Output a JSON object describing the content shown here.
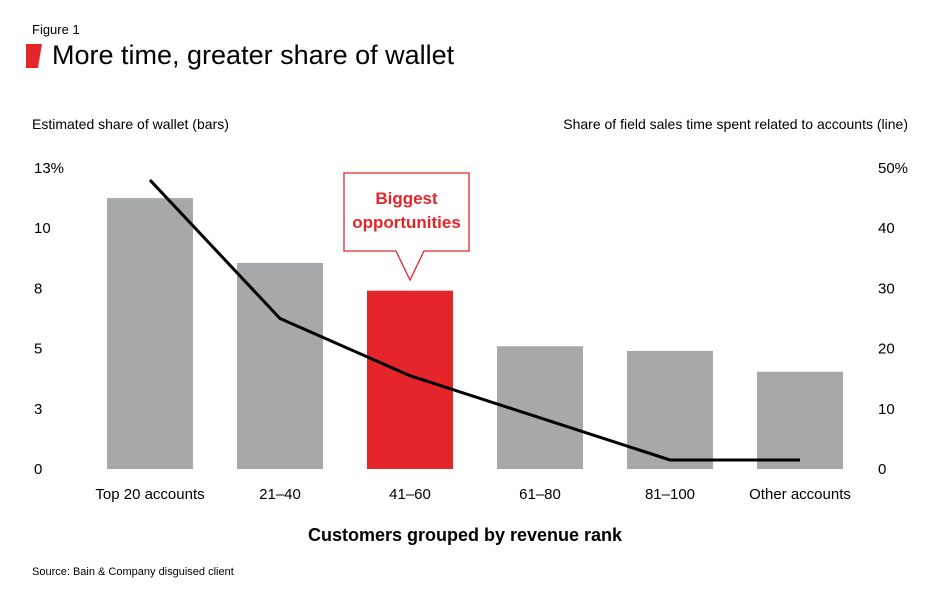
{
  "figure_label": "Figure 1",
  "title": "More time, greater share of wallet",
  "source": "Source: Bain & Company disguised client",
  "colors": {
    "accent": "#e4262b",
    "bar": "#a7a8aa",
    "line": "#000000"
  },
  "chart_data": {
    "type": "bar",
    "title": "More time, greater share of wallet",
    "xlabel": "Customers grouped by revenue rank",
    "ylabel": "Estimated share of wallet (bars)",
    "y2label": "Share of field sales time spent related to accounts (line)",
    "categories": [
      "Top 20 accounts",
      "21–40",
      "41–60",
      "61–80",
      "81–100",
      "Other accounts"
    ],
    "ylim": [
      0,
      13
    ],
    "y2lim": [
      0,
      50
    ],
    "yticks": [
      "0",
      "3",
      "5",
      "8",
      "10",
      "13%"
    ],
    "y2ticks": [
      "0",
      "10",
      "20",
      "30",
      "40",
      "50%"
    ],
    "series": [
      {
        "type": "bar",
        "axis": "left",
        "values": [
          11.7,
          8.9,
          7.7,
          5.3,
          5.1,
          4.2
        ],
        "highlight_index": 2
      },
      {
        "type": "line",
        "axis": "right",
        "values": [
          48,
          25,
          15.5,
          8.5,
          1.5,
          1.5
        ]
      }
    ],
    "annotation": {
      "lines": [
        "Biggest",
        "opportunities"
      ],
      "category_index": 2
    },
    "grid": false
  }
}
